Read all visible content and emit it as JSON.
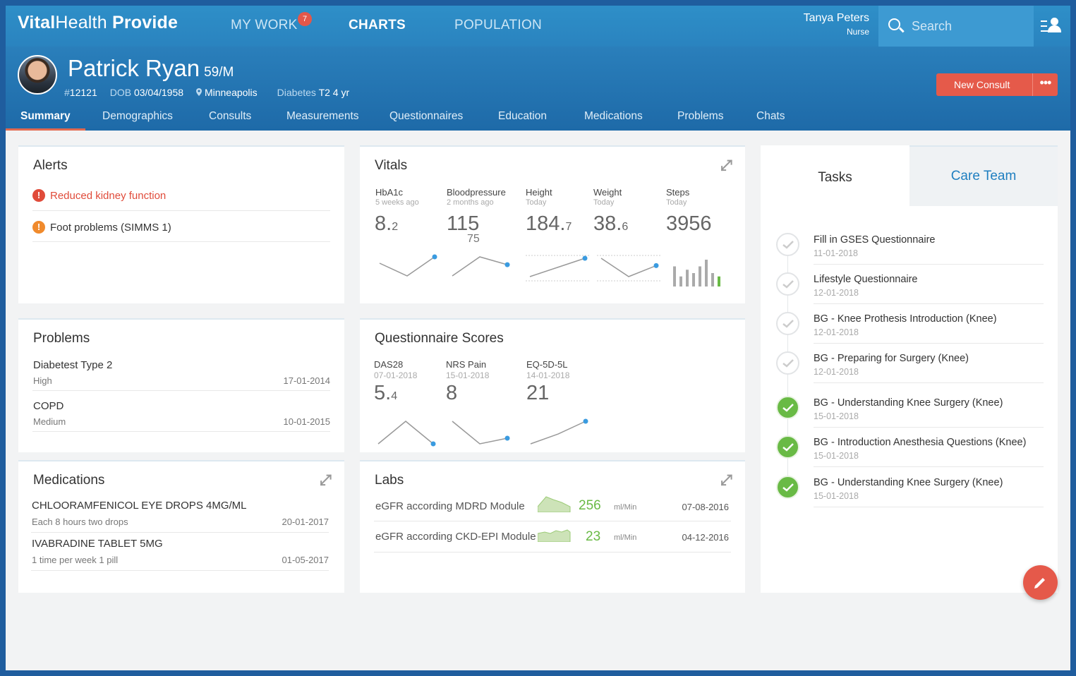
{
  "app": {
    "brand_bold": "Vital",
    "brand_rest": "Health",
    "brand_suffix": "Provide"
  },
  "nav": {
    "items": [
      "MY WORK",
      "CHARTS",
      "POPULATION"
    ],
    "badge": "7",
    "active": "CHARTS"
  },
  "user": {
    "name": "Tanya Peters",
    "role": "Nurse"
  },
  "search": {
    "placeholder": "Search"
  },
  "patient": {
    "name": "Patrick Ryan",
    "age_sex": "59/M",
    "id_prefix": "#",
    "id": "12121",
    "dob_label": "DOB",
    "dob": "03/04/1958",
    "city": "Minneapolis",
    "condition_label": "Diabetes",
    "condition": "T2 4 yr"
  },
  "actions": {
    "new_consult": "New Consult",
    "more": "•••"
  },
  "tabs": [
    "Summary",
    "Demographics",
    "Consults",
    "Measurements",
    "Questionnaires",
    "Education",
    "Medications",
    "Problems",
    "Chats"
  ],
  "alerts": {
    "title": "Alerts",
    "items": [
      {
        "text": "Reduced kidney function",
        "severity": "error",
        "color": "#e04b3a"
      },
      {
        "text": "Foot problems (SIMMS 1)",
        "severity": "warning",
        "color": "#f08a2c"
      }
    ]
  },
  "vitals": {
    "title": "Vitals",
    "items": [
      {
        "label": "HbA1c",
        "sub": "5 weeks ago",
        "value": "8.",
        "decimal": "2",
        "trend": [
          2,
          1,
          2.5
        ]
      },
      {
        "label": "Bloodpressure",
        "sub": "2 months ago",
        "value": "115",
        "value2": "75",
        "trend": [
          1,
          2.7,
          2
        ]
      },
      {
        "label": "Height",
        "sub": "Today",
        "value": "184.",
        "decimal": "7",
        "trend": [
          1,
          2,
          3
        ]
      },
      {
        "label": "Weight",
        "sub": "Today",
        "value": "38.",
        "decimal": "6",
        "trend": [
          2,
          1,
          1.6
        ]
      },
      {
        "label": "Steps",
        "sub": "Today",
        "value": "3956",
        "bars": [
          6,
          3,
          5,
          4,
          6,
          8,
          4,
          3
        ]
      }
    ]
  },
  "problems": {
    "title": "Problems",
    "items": [
      {
        "name": "Diabetest Type 2",
        "severity": "High",
        "date": "17-01-2014"
      },
      {
        "name": "COPD",
        "severity": "Medium",
        "date": "10-01-2015"
      }
    ]
  },
  "questionnaires": {
    "title": "Questionnaire Scores",
    "items": [
      {
        "label": "DAS28",
        "date": "07-01-2018",
        "value": "5.",
        "decimal": "4",
        "trend": [
          1,
          2,
          1
        ]
      },
      {
        "label": "NRS Pain",
        "date": "15-01-2018",
        "value": "8",
        "trend": [
          3,
          1,
          1.5
        ]
      },
      {
        "label": "EQ-5D-5L",
        "date": "14-01-2018",
        "value": "21",
        "trend": [
          1,
          2,
          3.3
        ]
      }
    ]
  },
  "medications": {
    "title": "Medications",
    "items": [
      {
        "name": "CHLOORAMFENICOL EYE DROPS 4MG/ML",
        "dose": "Each 8 hours two drops",
        "date": "20-01-2017"
      },
      {
        "name": "IVABRADINE TABLET 5MG",
        "dose": "1 time per week 1 pill",
        "date": "01-05-2017"
      }
    ]
  },
  "labs": {
    "title": "Labs",
    "items": [
      {
        "name": "eGFR according MDRD Module",
        "value": "256",
        "unit": "ml/Min",
        "date": "07-08-2016"
      },
      {
        "name": "eGFR according CKD-EPI Module",
        "value": "23",
        "unit": "ml/Min",
        "date": "04-12-2016"
      }
    ]
  },
  "tasks_panel": {
    "tab_tasks": "Tasks",
    "tab_team": "Care Team"
  },
  "tasks": [
    {
      "title": "Fill in GSES Questionnaire",
      "date": "11-01-2018",
      "done": false
    },
    {
      "title": "Lifestyle Questionnaire",
      "date": "12-01-2018",
      "done": false
    },
    {
      "title": "BG - Knee Prothesis Introduction (Knee)",
      "date": "12-01-2018",
      "done": false
    },
    {
      "title": "BG - Preparing for Surgery (Knee)",
      "date": "12-01-2018",
      "done": false
    },
    {
      "title": "BG - Understanding Knee Surgery (Knee)",
      "date": "15-01-2018",
      "done": true
    },
    {
      "title": "BG - Introduction Anesthesia Questions (Knee)",
      "date": "15-01-2018",
      "done": true
    },
    {
      "title": "BG - Understanding Knee Surgery (Knee)",
      "date": "15-01-2018",
      "done": true
    }
  ],
  "colors": {
    "accent": "#2a83bf",
    "danger": "#e55a4a",
    "success": "#69ba45",
    "link": "#1f7fc0",
    "spark": "#3a9be0"
  }
}
